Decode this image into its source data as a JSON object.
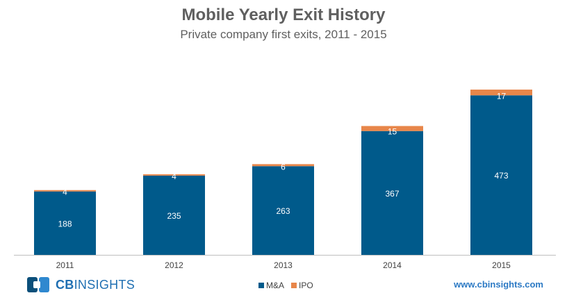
{
  "chart_data": {
    "type": "bar",
    "stacked": true,
    "title": "Mobile Yearly Exit History",
    "subtitle": "Private company first exits, 2011 - 2015",
    "categories": [
      "2011",
      "2012",
      "2013",
      "2014",
      "2015"
    ],
    "series": [
      {
        "name": "M&A",
        "color": "#005a8b",
        "values": [
          188,
          235,
          263,
          367,
          473
        ]
      },
      {
        "name": "IPO",
        "color": "#e8864a",
        "values": [
          4,
          4,
          6,
          15,
          17
        ]
      }
    ],
    "ylim": [
      0,
      490
    ],
    "grid": false,
    "legend": "bottom-center"
  },
  "branding": {
    "logo_cb": "CB",
    "logo_insights": "INSIGHTS",
    "website": "www.cbinsights.com"
  }
}
